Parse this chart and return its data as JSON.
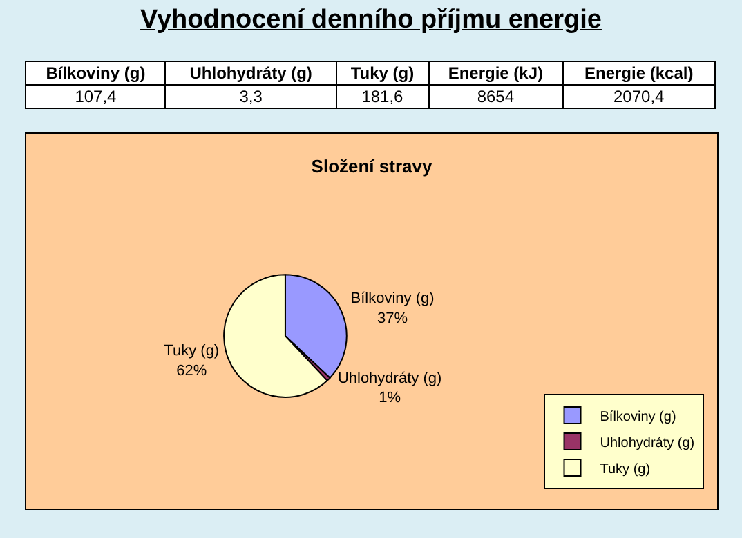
{
  "chart_data": [
    {
      "type": "other",
      "title": "Vyhodnocení denního příjmu energie",
      "annotations": [
        "Bílkoviny (g)",
        "Uhlohydráty (g)",
        "Tuky (g)",
        "Energie (kJ)",
        "Energie (kcal)",
        "107,4",
        "3,3",
        "181,6",
        "8654",
        "2070,4"
      ]
    },
    {
      "type": "pie",
      "title": "Složení stravy",
      "categories": [
        "Bílkoviny (g)",
        "Uhlohydráty (g)",
        "Tuky (g)"
      ],
      "values": [
        37,
        1,
        62
      ],
      "value_labels": [
        "37%",
        "1%",
        "62%"
      ],
      "colors": [
        "#9999ff",
        "#993366",
        "#ffffcc"
      ],
      "legend": "bottom right"
    }
  ]
}
